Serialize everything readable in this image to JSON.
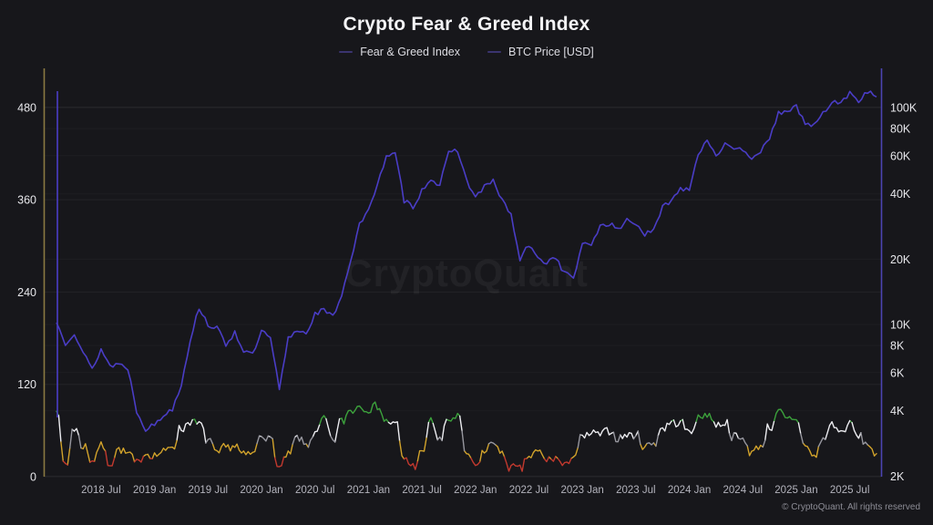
{
  "chart_data": {
    "type": "line",
    "title": "Crypto Fear & Greed Index",
    "watermark": "CryptoQuant",
    "legend_position": "top",
    "legend_marker_color": "#3a346f",
    "legend": [
      {
        "label": "Fear & Greed Index",
        "series": "fear_greed_index"
      },
      {
        "label": "BTC Price [USD]",
        "series": "btc_price_usd"
      }
    ],
    "grid": {
      "horizontal": "faint",
      "vertical": "none"
    },
    "x_axis": {
      "start_month": "2018-02",
      "end_month": "2025-10",
      "step": "1 month",
      "tick_labels": [
        "2018 Jul",
        "2019 Jan",
        "2019 Jul",
        "2020 Jan",
        "2020 Jul",
        "2021 Jan",
        "2021 Jul",
        "2022 Jan",
        "2022 Jul",
        "2023 Jan",
        "2023 Jul",
        "2024 Jan",
        "2024 Jul",
        "2025 Jan",
        "2025 Jul"
      ]
    },
    "left_axis": {
      "series": "fear_greed_index",
      "scale": "linear",
      "range": [
        0,
        532
      ],
      "tick_values": [
        0,
        120,
        240,
        360,
        480
      ],
      "axis_color": "#8a7a42"
    },
    "right_axis": {
      "series": "btc_price_usd",
      "scale": "log",
      "tick_labels": [
        "100K",
        "80K",
        "60K",
        "40K",
        "20K",
        "10K",
        "8K",
        "6K",
        "4K",
        "2K"
      ],
      "tick_values": [
        100000,
        80000,
        60000,
        40000,
        20000,
        10000,
        8000,
        6000,
        4000,
        2000
      ],
      "axis_color": "#4c44b2"
    },
    "fear_greed_bands": [
      {
        "range": [
          0,
          24
        ],
        "color": "#c2392e",
        "label": "extreme fear"
      },
      {
        "range": [
          24,
          42
        ],
        "color": "#d2a32b",
        "label": "fear"
      },
      {
        "range": [
          42,
          52
        ],
        "color": "#97979f",
        "label": "neutral"
      },
      {
        "range": [
          52,
          71
        ],
        "color": "#ececf0",
        "label": "greed"
      },
      {
        "range": [
          71,
          100
        ],
        "color": "#3ca23c",
        "label": "extreme greed"
      }
    ],
    "line_colors": {
      "btc_price_usd": "#4a3dc6"
    },
    "series": [
      {
        "name": "fear_greed_index",
        "axis": "left",
        "values": [
          85,
          15,
          62,
          40,
          22,
          40,
          18,
          35,
          30,
          18,
          30,
          28,
          32,
          40,
          62,
          72,
          68,
          48,
          30,
          38,
          40,
          28,
          30,
          55,
          48,
          12,
          28,
          50,
          42,
          55,
          74,
          48,
          72,
          86,
          92,
          88,
          92,
          72,
          68,
          24,
          14,
          30,
          72,
          48,
          74,
          78,
          30,
          14,
          32,
          46,
          28,
          12,
          10,
          26,
          32,
          22,
          24,
          14,
          28,
          50,
          56,
          55,
          60,
          50,
          54,
          54,
          40,
          44,
          63,
          70,
          70,
          58,
          75,
          82,
          68,
          70,
          52,
          48,
          32,
          40,
          64,
          84,
          74,
          72,
          42,
          26,
          48,
          68,
          58,
          68,
          52,
          42,
          30
        ]
      },
      {
        "name": "btc_price_usd",
        "axis": "right",
        "values": [
          10200,
          8200,
          9200,
          7400,
          6200,
          7700,
          6450,
          6600,
          6300,
          4000,
          3300,
          3450,
          3800,
          4100,
          5300,
          8500,
          12000,
          10000,
          9600,
          8100,
          9200,
          7600,
          7200,
          9300,
          8600,
          5000,
          8600,
          9450,
          9100,
          11200,
          11650,
          10800,
          13800,
          19700,
          29000,
          33100,
          45200,
          58800,
          61000,
          37300,
          35000,
          41500,
          47100,
          43800,
          61300,
          64000,
          46200,
          38500,
          43200,
          45500,
          37600,
          31800,
          19900,
          23300,
          20000,
          19400,
          20500,
          17200,
          16550,
          23100,
          23500,
          28500,
          29250,
          27200,
          30450,
          29250,
          26000,
          26950,
          34650,
          37700,
          42250,
          42600,
          61200,
          71300,
          60600,
          67500,
          62700,
          64600,
          58950,
          63300,
          70200,
          96400,
          93400,
          102100,
          84350,
          82550,
          94200,
          104600,
          107150,
          115750,
          108250,
          118000,
          112000
        ]
      }
    ],
    "annotations": {
      "initial_artifact": "vertical BTC-colored spike at the first data point (Feb 2018)"
    }
  },
  "footer": {
    "copyright": "© CryptoQuant. All rights reserved"
  }
}
